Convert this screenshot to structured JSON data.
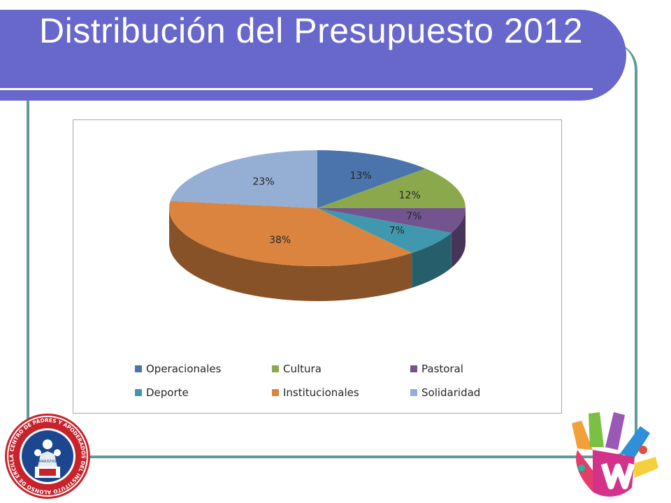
{
  "slide": {
    "title": "Distribución del Presupuesto 2012",
    "logo_text": "CENTRO DE PADRES Y APODERADOS DEL INSTITUTO ALONSO DE ERCILLA",
    "logo_badge_text": "MARISTAS",
    "colors": {
      "title_band": "#6767cc",
      "frame_line": "#5f9b9c"
    }
  },
  "chart_data": {
    "type": "pie",
    "style": "3d",
    "title": "",
    "legend_position": "bottom",
    "categories": [
      "Operacionales",
      "Cultura",
      "Pastoral",
      "Deporte",
      "Institucionales",
      "Solidaridad"
    ],
    "values": [
      13,
      12,
      7,
      7,
      38,
      23
    ],
    "labels": [
      "13%",
      "12%",
      "7%",
      "7%",
      "38%",
      "23%"
    ],
    "colors": [
      "#4a74ab",
      "#8ba94c",
      "#73548f",
      "#3f98ae",
      "#db8440",
      "#94aed4"
    ]
  }
}
